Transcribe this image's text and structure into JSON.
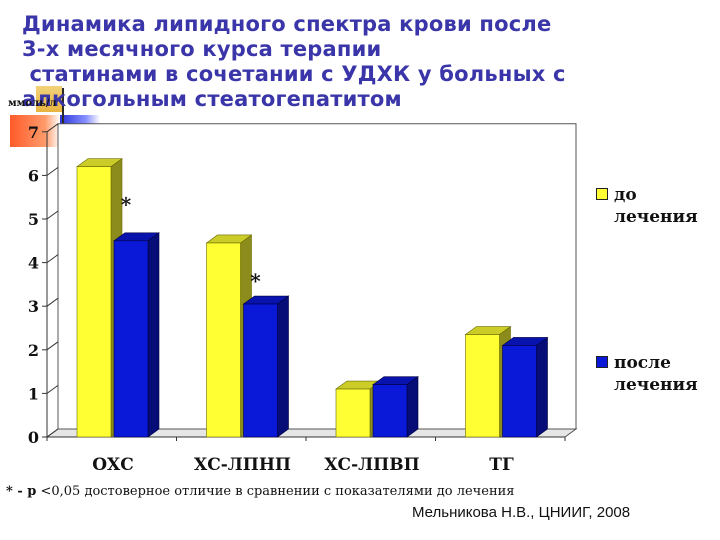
{
  "title_lines": [
    "Динамика липидного спектра крови после",
    "3-х месячного курса терапии",
    " статинами в сочетании с УДХК у больных с",
    "алкогольным стеатогепатитом"
  ],
  "colors": {
    "before": "#ffff33",
    "after": "#0a18d8",
    "title": "#3a35a8"
  },
  "chart_data": {
    "type": "bar",
    "ylabel": "ммоль/л",
    "ylim": [
      0,
      7
    ],
    "yticks": [
      0,
      1,
      2,
      3,
      4,
      5,
      6,
      7
    ],
    "categories": [
      "ОХС",
      "ХС-ЛПНП",
      "ХС-ЛПВП",
      "ТГ"
    ],
    "series": [
      {
        "name": "до лечения",
        "values": [
          6.2,
          4.45,
          1.1,
          2.35
        ]
      },
      {
        "name": "после лечения",
        "values": [
          4.5,
          3.05,
          1.2,
          2.1
        ]
      }
    ],
    "annotations": [
      {
        "text": "*",
        "category": "ОХС"
      },
      {
        "text": "*",
        "category": "ХС-ЛПНП"
      }
    ],
    "legend_position": "right",
    "grid": false
  },
  "legend": {
    "before_label": "до лечения",
    "after_label": "после лечения"
  },
  "footnote": {
    "mark": "* - р",
    "text": " <0,05 достоверное отличие в сравнении с показателями до лечения"
  },
  "author": "Мельникова Н.В., ЦНИИГ, 2008"
}
